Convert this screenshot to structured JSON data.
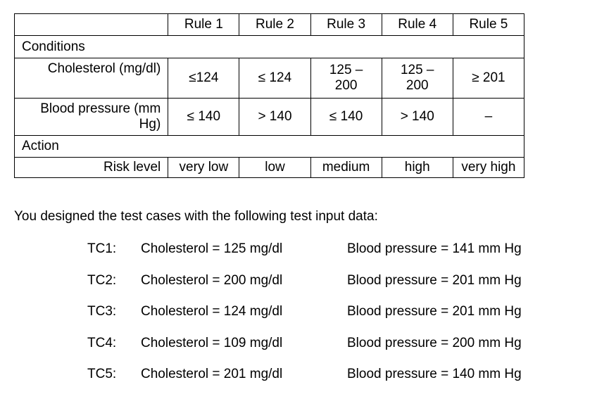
{
  "table": {
    "rules": [
      "Rule 1",
      "Rule 2",
      "Rule 3",
      "Rule 4",
      "Rule 5"
    ],
    "conditions_label": "Conditions",
    "cholesterol": {
      "label": "Cholesterol (mg/dl)",
      "values": [
        "≤124",
        "≤ 124",
        "125 – 200",
        "125 – 200",
        "≥ 201"
      ]
    },
    "blood_pressure": {
      "label": "Blood pressure (mm Hg)",
      "values": [
        "≤ 140",
        "> 140",
        "≤ 140",
        "> 140",
        "–"
      ]
    },
    "action_label": "Action",
    "risk_level": {
      "label": "Risk level",
      "values": [
        "very low",
        "low",
        "medium",
        "high",
        "very high"
      ]
    }
  },
  "intro_text": "You designed the test cases with the following test input data:",
  "test_cases": [
    {
      "id": "TC1:",
      "cholesterol": "Cholesterol = 125 mg/dl",
      "blood_pressure": "Blood pressure = 141 mm Hg"
    },
    {
      "id": "TC2:",
      "cholesterol": "Cholesterol = 200 mg/dl",
      "blood_pressure": "Blood pressure = 201 mm Hg"
    },
    {
      "id": "TC3:",
      "cholesterol": "Cholesterol = 124 mg/dl",
      "blood_pressure": "Blood pressure = 201 mm Hg"
    },
    {
      "id": "TC4:",
      "cholesterol": "Cholesterol = 109 mg/dl",
      "blood_pressure": "Blood pressure = 200 mm Hg"
    },
    {
      "id": "TC5:",
      "cholesterol": "Cholesterol = 201 mg/dl",
      "blood_pressure": "Blood pressure = 140 mm Hg"
    }
  ]
}
